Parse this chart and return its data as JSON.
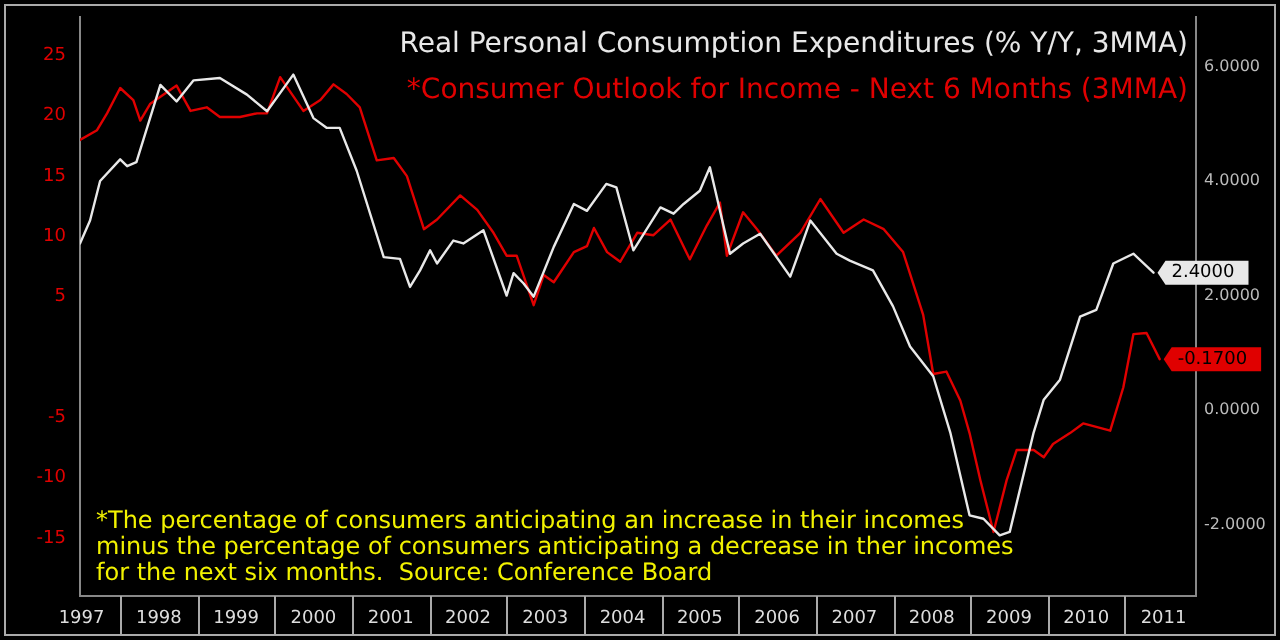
{
  "chart_data": {
    "type": "line",
    "series": [
      {
        "name": "Real Personal Consumption Expenditures (% Y/Y, 3MMA)",
        "color": "#e8e8e8",
        "axis": "y2",
        "x": [
          1997.48,
          1997.61,
          1997.74,
          1998.0,
          1998.09,
          1998.21,
          1998.52,
          1998.73,
          1998.95,
          1999.29,
          1999.64,
          1999.9,
          2000.24,
          2000.5,
          2000.67,
          2000.84,
          2001.06,
          2001.41,
          2001.62,
          2001.75,
          2001.88,
          2002.01,
          2002.1,
          2002.31,
          2002.44,
          2002.7,
          2003.0,
          2003.09,
          2003.22,
          2003.35,
          2003.61,
          2003.87,
          2004.04,
          2004.29,
          2004.42,
          2004.64,
          2004.99,
          2005.16,
          2005.29,
          2005.5,
          2005.63,
          2005.89,
          2006.06,
          2006.28,
          2006.67,
          2006.93,
          2007.27,
          2007.44,
          2007.74,
          2008.0,
          2008.22,
          2008.52,
          2008.74,
          2008.99,
          2009.17,
          2009.38,
          2009.51,
          2009.82,
          2009.95,
          2010.16,
          2010.42,
          2010.63,
          2010.85,
          2011.11,
          2011.37
        ],
        "values": [
          2.91,
          3.31,
          4.0,
          4.38,
          4.26,
          4.33,
          5.68,
          5.39,
          5.76,
          5.8,
          5.51,
          5.22,
          5.86,
          5.1,
          4.93,
          4.93,
          4.18,
          2.67,
          2.64,
          2.15,
          2.44,
          2.79,
          2.56,
          2.96,
          2.91,
          3.14,
          2.0,
          2.39,
          2.21,
          1.98,
          2.85,
          3.6,
          3.48,
          3.95,
          3.89,
          2.79,
          3.54,
          3.43,
          3.6,
          3.83,
          4.24,
          2.73,
          2.91,
          3.08,
          2.33,
          3.31,
          2.73,
          2.61,
          2.44,
          1.81,
          1.11,
          0.59,
          -0.39,
          -1.84,
          -1.9,
          -2.19,
          -2.13,
          -0.39,
          0.18,
          0.53,
          1.63,
          1.75,
          2.56,
          2.73,
          2.4
        ],
        "value_labels": [
          null,
          null,
          null,
          null,
          null,
          null,
          null,
          null,
          null,
          null,
          null,
          null,
          null,
          null,
          null,
          null,
          null,
          null,
          null,
          null,
          null,
          null,
          null,
          null,
          null,
          null,
          null,
          null,
          null,
          null,
          null,
          null,
          null,
          null,
          null,
          null,
          null,
          null,
          null,
          null,
          null,
          null,
          null,
          null,
          null,
          null,
          null,
          null,
          null,
          null,
          null,
          null,
          null,
          null,
          null,
          null,
          null,
          null,
          null,
          null,
          null,
          null,
          null,
          null,
          "2.4000"
        ]
      },
      {
        "name": "*Consumer Outlook for Income - Next 6 Months (3MMA)",
        "color": "#e00000",
        "axis": "y",
        "x": [
          1997.48,
          1997.7,
          1997.83,
          1998.0,
          1998.17,
          1998.26,
          1998.39,
          1998.73,
          1998.91,
          1999.12,
          1999.29,
          1999.55,
          1999.77,
          1999.9,
          2000.07,
          2000.37,
          2000.59,
          2000.76,
          2000.93,
          2001.1,
          2001.32,
          2001.54,
          2001.71,
          2001.93,
          2002.1,
          2002.4,
          2002.62,
          2002.83,
          2003.0,
          2003.13,
          2003.35,
          2003.48,
          2003.61,
          2003.87,
          2004.04,
          2004.13,
          2004.3,
          2004.47,
          2004.69,
          2004.9,
          2005.12,
          2005.37,
          2005.59,
          2005.76,
          2005.85,
          2006.06,
          2006.24,
          2006.49,
          2006.8,
          2007.06,
          2007.36,
          2007.62,
          2007.88,
          2008.13,
          2008.39,
          2008.52,
          2008.69,
          2008.87,
          2008.99,
          2009.13,
          2009.3,
          2009.47,
          2009.6,
          2009.82,
          2009.95,
          2010.07,
          2010.29,
          2010.46,
          2010.81,
          2010.98,
          2011.11,
          2011.28,
          2011.45
        ],
        "values": [
          18.0,
          18.8,
          20.2,
          22.3,
          21.3,
          19.6,
          21.0,
          22.5,
          20.4,
          20.7,
          19.9,
          19.9,
          20.2,
          20.2,
          23.2,
          20.4,
          21.3,
          22.6,
          21.8,
          20.7,
          16.3,
          16.5,
          15.0,
          10.6,
          11.4,
          13.4,
          12.2,
          10.3,
          8.4,
          8.4,
          4.3,
          6.8,
          6.2,
          8.7,
          9.2,
          10.7,
          8.7,
          7.9,
          10.3,
          10.1,
          11.4,
          8.1,
          10.9,
          12.8,
          8.4,
          12.0,
          10.6,
          8.4,
          10.3,
          13.1,
          10.3,
          11.4,
          10.6,
          8.7,
          3.5,
          -1.4,
          -1.2,
          -3.6,
          -6.3,
          -10.2,
          -14.5,
          -10.2,
          -7.7,
          -7.7,
          -8.3,
          -7.2,
          -6.3,
          -5.5,
          -6.1,
          -2.5,
          1.9,
          2.0,
          -0.17
        ],
        "value_labels": [
          null,
          null,
          null,
          null,
          null,
          null,
          null,
          null,
          null,
          null,
          null,
          null,
          null,
          null,
          null,
          null,
          null,
          null,
          null,
          null,
          null,
          null,
          null,
          null,
          null,
          null,
          null,
          null,
          null,
          null,
          null,
          null,
          null,
          null,
          null,
          null,
          null,
          null,
          null,
          null,
          null,
          null,
          null,
          null,
          null,
          null,
          null,
          null,
          null,
          null,
          null,
          null,
          null,
          null,
          null,
          null,
          null,
          null,
          null,
          null,
          null,
          null,
          null,
          null,
          null,
          null,
          null,
          null,
          null,
          null,
          null,
          null,
          "-0.1700"
        ]
      }
    ],
    "xlim": [
      1997.48,
      2011.92
    ],
    "xticks": [
      {
        "value": 1997.5,
        "label": "1997"
      },
      {
        "value": 1998.5,
        "label": "1998"
      },
      {
        "value": 1999.5,
        "label": "1999"
      },
      {
        "value": 2000.5,
        "label": "2000"
      },
      {
        "value": 2001.5,
        "label": "2001"
      },
      {
        "value": 2002.5,
        "label": "2002"
      },
      {
        "value": 2003.5,
        "label": "2003"
      },
      {
        "value": 2004.5,
        "label": "2004"
      },
      {
        "value": 2005.5,
        "label": "2005"
      },
      {
        "value": 2006.5,
        "label": "2006"
      },
      {
        "value": 2007.5,
        "label": "2007"
      },
      {
        "value": 2008.5,
        "label": "2008"
      },
      {
        "value": 2009.5,
        "label": "2009"
      },
      {
        "value": 2010.5,
        "label": "2010"
      },
      {
        "value": 2011.5,
        "label": "2011"
      }
    ],
    "ylim": [
      -19.8,
      28.2
    ],
    "yticks": [
      -15,
      -10,
      -5,
      5,
      10,
      15,
      20,
      25
    ],
    "y2lim": [
      -3.25,
      6.87
    ],
    "y2ticks": [
      {
        "value": -2,
        "label": "-2.0000"
      },
      {
        "value": 0,
        "label": "0.0000"
      },
      {
        "value": 2,
        "label": "2.0000"
      },
      {
        "value": 4,
        "label": "4.0000"
      },
      {
        "value": 6,
        "label": "6.0000"
      }
    ],
    "grid": false,
    "legend": "top right",
    "marker": "none",
    "line_style": "solid",
    "annotations": [
      "*The percentage of consumers anticipating an increase in their incomes\nminus the percentage of consumers anticipating a decrease in ther incomes\nfor the next six months.  Source: Conference Board"
    ]
  }
}
